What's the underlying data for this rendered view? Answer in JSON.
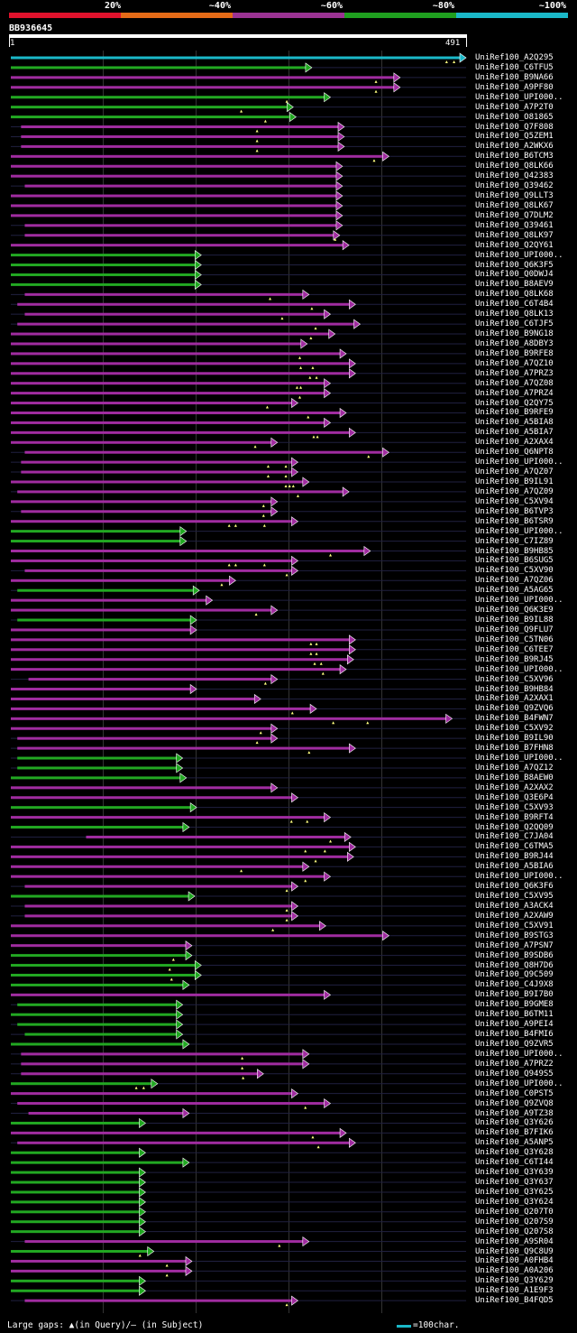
{
  "legend": {
    "segments": [
      {
        "label": "20%",
        "color": "#e0122c"
      },
      {
        "label": "~40%",
        "color": "#e56b17"
      },
      {
        "label": "~60%",
        "color": "#9b3393"
      },
      {
        "label": "~80%",
        "color": "#1f9f1f"
      },
      {
        "label": "~100%",
        "color": "#1ab8c8"
      }
    ]
  },
  "query": {
    "name": "BB936645",
    "start": "1",
    "end": "491",
    "length": 491
  },
  "colors": {
    "magenta": "#a02ca0",
    "green": "#22a822",
    "cyan": "#1ab8c8",
    "background": "#000000",
    "gridline": "#333333"
  },
  "hits": [
    {
      "name": "UniRef100_A2Q295",
      "start": 1,
      "end": 491,
      "color": "cyan",
      "gaps": [
        470,
        478
      ]
    },
    {
      "name": "UniRef100_C6TFU5",
      "start": 1,
      "end": 325,
      "color": "green",
      "gaps": []
    },
    {
      "name": "UniRef100_B9NA66",
      "start": 1,
      "end": 420,
      "color": "magenta",
      "gaps": [
        394
      ]
    },
    {
      "name": "UniRef100_A9PF80",
      "start": 1,
      "end": 420,
      "color": "magenta",
      "gaps": [
        394
      ]
    },
    {
      "name": "UniRef100_UPI000..",
      "start": 1,
      "end": 345,
      "color": "green",
      "gaps": [
        298
      ]
    },
    {
      "name": "UniRef100_A7P2T0",
      "start": 1,
      "end": 305,
      "color": "green",
      "gaps": [
        249
      ]
    },
    {
      "name": "UniRef100_O81865",
      "start": 1,
      "end": 308,
      "color": "green",
      "gaps": [
        275
      ]
    },
    {
      "name": "UniRef100_Q7F808",
      "start": 12,
      "end": 360,
      "color": "magenta",
      "gaps": [
        266
      ]
    },
    {
      "name": "UniRef100_Q5ZEM1",
      "start": 12,
      "end": 360,
      "color": "magenta",
      "gaps": [
        266
      ]
    },
    {
      "name": "UniRef100_A2WKX6",
      "start": 12,
      "end": 360,
      "color": "magenta",
      "gaps": [
        266
      ]
    },
    {
      "name": "UniRef100_B6TCM3",
      "start": 1,
      "end": 408,
      "color": "magenta",
      "gaps": [
        392
      ]
    },
    {
      "name": "UniRef100_Q8LK66",
      "start": 1,
      "end": 358,
      "color": "magenta",
      "gaps": []
    },
    {
      "name": "UniRef100_Q42383",
      "start": 1,
      "end": 358,
      "color": "magenta",
      "gaps": []
    },
    {
      "name": "UniRef100_Q39462",
      "start": 16,
      "end": 358,
      "color": "magenta",
      "gaps": []
    },
    {
      "name": "UniRef100_Q9LLT3",
      "start": 1,
      "end": 358,
      "color": "magenta",
      "gaps": []
    },
    {
      "name": "UniRef100_Q8LK67",
      "start": 1,
      "end": 358,
      "color": "magenta",
      "gaps": []
    },
    {
      "name": "UniRef100_Q7DLM2",
      "start": 1,
      "end": 358,
      "color": "magenta",
      "gaps": []
    },
    {
      "name": "UniRef100_Q39461",
      "start": 16,
      "end": 358,
      "color": "magenta",
      "gaps": []
    },
    {
      "name": "UniRef100_Q8LK97",
      "start": 16,
      "end": 355,
      "color": "magenta",
      "gaps": [
        350
      ]
    },
    {
      "name": "UniRef100_Q2QY61",
      "start": 1,
      "end": 365,
      "color": "magenta",
      "gaps": []
    },
    {
      "name": "UniRef100_UPI000..",
      "start": 1,
      "end": 206,
      "color": "green",
      "gaps": []
    },
    {
      "name": "UniRef100_Q6K3F5",
      "start": 1,
      "end": 206,
      "color": "green",
      "gaps": []
    },
    {
      "name": "UniRef100_Q0DWJ4",
      "start": 1,
      "end": 206,
      "color": "green",
      "gaps": []
    },
    {
      "name": "UniRef100_B8AEV9",
      "start": 1,
      "end": 206,
      "color": "green",
      "gaps": []
    },
    {
      "name": "UniRef100_Q8LK68",
      "start": 16,
      "end": 322,
      "color": "magenta",
      "gaps": [
        280
      ]
    },
    {
      "name": "UniRef100_C6T4B4",
      "start": 8,
      "end": 372,
      "color": "magenta",
      "gaps": [
        325
      ]
    },
    {
      "name": "UniRef100_Q8LK13",
      "start": 16,
      "end": 345,
      "color": "magenta",
      "gaps": [
        293
      ]
    },
    {
      "name": "UniRef100_C6TJF5",
      "start": 8,
      "end": 377,
      "color": "magenta",
      "gaps": [
        329
      ]
    },
    {
      "name": "UniRef100_B9NG18",
      "start": 1,
      "end": 350,
      "color": "magenta",
      "gaps": [
        324
      ]
    },
    {
      "name": "UniRef100_A8DBY3",
      "start": 1,
      "end": 320,
      "color": "magenta",
      "gaps": []
    },
    {
      "name": "UniRef100_B9RFE8",
      "start": 1,
      "end": 362,
      "color": "magenta",
      "gaps": [
        312
      ]
    },
    {
      "name": "UniRef100_A7QZ10",
      "start": 1,
      "end": 372,
      "color": "magenta",
      "gaps": [
        313,
        326
      ]
    },
    {
      "name": "UniRef100_A7PRZ3",
      "start": 1,
      "end": 372,
      "color": "magenta",
      "gaps": [
        323,
        330
      ]
    },
    {
      "name": "UniRef100_A7QZ08",
      "start": 1,
      "end": 345,
      "color": "magenta",
      "gaps": [
        309,
        313
      ]
    },
    {
      "name": "UniRef100_A7PRZ4",
      "start": 1,
      "end": 345,
      "color": "magenta",
      "gaps": [
        312
      ]
    },
    {
      "name": "UniRef100_Q2QY75",
      "start": 1,
      "end": 310,
      "color": "magenta",
      "gaps": [
        277
      ]
    },
    {
      "name": "UniRef100_B9RFE9",
      "start": 1,
      "end": 362,
      "color": "magenta",
      "gaps": [
        321
      ]
    },
    {
      "name": "UniRef100_A5BIA8",
      "start": 1,
      "end": 345,
      "color": "magenta",
      "gaps": []
    },
    {
      "name": "UniRef100_A5BIA7",
      "start": 1,
      "end": 372,
      "color": "magenta",
      "gaps": [
        327,
        331
      ]
    },
    {
      "name": "UniRef100_A2XAX4",
      "start": 1,
      "end": 288,
      "color": "magenta",
      "gaps": [
        264
      ]
    },
    {
      "name": "UniRef100_Q6NPT8",
      "start": 16,
      "end": 408,
      "color": "magenta",
      "gaps": [
        386
      ]
    },
    {
      "name": "UniRef100_UPI000..",
      "start": 12,
      "end": 310,
      "color": "magenta",
      "gaps": [
        278,
        297
      ]
    },
    {
      "name": "UniRef100_A7QZ07",
      "start": 12,
      "end": 310,
      "color": "magenta",
      "gaps": [
        278,
        297
      ]
    },
    {
      "name": "UniRef100_B9IL91",
      "start": 1,
      "end": 322,
      "color": "magenta",
      "gaps": [
        297,
        301,
        305
      ]
    },
    {
      "name": "UniRef100_A7QZ09",
      "start": 8,
      "end": 365,
      "color": "magenta",
      "gaps": [
        310
      ]
    },
    {
      "name": "UniRef100_C5XV94",
      "start": 1,
      "end": 288,
      "color": "magenta",
      "gaps": [
        273
      ]
    },
    {
      "name": "UniRef100_B6TVP3",
      "start": 12,
      "end": 288,
      "color": "magenta",
      "gaps": [
        273
      ]
    },
    {
      "name": "UniRef100_B6TSR9",
      "start": 1,
      "end": 310,
      "color": "magenta",
      "gaps": [
        236,
        243,
        274
      ]
    },
    {
      "name": "UniRef100_UPI000..",
      "start": 1,
      "end": 190,
      "color": "green",
      "gaps": []
    },
    {
      "name": "UniRef100_C7IZ89",
      "start": 1,
      "end": 190,
      "color": "green",
      "gaps": []
    },
    {
      "name": "UniRef100_B9HB85",
      "start": 1,
      "end": 388,
      "color": "magenta",
      "gaps": [
        345
      ]
    },
    {
      "name": "UniRef100_B6SUG5",
      "start": 1,
      "end": 310,
      "color": "magenta",
      "gaps": [
        236,
        243,
        274
      ]
    },
    {
      "name": "UniRef100_C5XV90",
      "start": 16,
      "end": 310,
      "color": "magenta",
      "gaps": [
        298
      ]
    },
    {
      "name": "UniRef100_A7QZ06",
      "start": 1,
      "end": 243,
      "color": "magenta",
      "gaps": [
        228
      ]
    },
    {
      "name": "UniRef100_A5AG65",
      "start": 8,
      "end": 204,
      "color": "green",
      "gaps": []
    },
    {
      "name": "UniRef100_UPI000..",
      "start": 1,
      "end": 218,
      "color": "magenta",
      "gaps": []
    },
    {
      "name": "UniRef100_Q6K3E9",
      "start": 1,
      "end": 288,
      "color": "magenta",
      "gaps": [
        265
      ]
    },
    {
      "name": "UniRef100_B9IL88",
      "start": 8,
      "end": 201,
      "color": "green",
      "gaps": []
    },
    {
      "name": "UniRef100_Q9FLU7",
      "start": 1,
      "end": 201,
      "color": "magenta",
      "gaps": []
    },
    {
      "name": "UniRef100_C5TN06",
      "start": 1,
      "end": 372,
      "color": "magenta",
      "gaps": [
        324,
        330
      ]
    },
    {
      "name": "UniRef100_C6TEE7",
      "start": 1,
      "end": 372,
      "color": "magenta",
      "gaps": [
        324,
        330
      ]
    },
    {
      "name": "UniRef100_B9RJ45",
      "start": 1,
      "end": 370,
      "color": "magenta",
      "gaps": [
        328,
        335
      ]
    },
    {
      "name": "UniRef100_UPI000..",
      "start": 1,
      "end": 362,
      "color": "magenta",
      "gaps": [
        337
      ]
    },
    {
      "name": "UniRef100_C5XV96",
      "start": 20,
      "end": 288,
      "color": "magenta",
      "gaps": [
        275
      ]
    },
    {
      "name": "UniRef100_B9HB84",
      "start": 1,
      "end": 201,
      "color": "magenta",
      "gaps": []
    },
    {
      "name": "UniRef100_A2XAX1",
      "start": 1,
      "end": 270,
      "color": "magenta",
      "gaps": []
    },
    {
      "name": "UniRef100_Q9ZVQ6",
      "start": 1,
      "end": 330,
      "color": "magenta",
      "gaps": [
        304
      ]
    },
    {
      "name": "UniRef100_B4FWN7",
      "start": 1,
      "end": 476,
      "color": "magenta",
      "gaps": [
        348,
        385
      ]
    },
    {
      "name": "UniRef100_C5XV92",
      "start": 1,
      "end": 288,
      "color": "magenta",
      "gaps": [
        270
      ]
    },
    {
      "name": "UniRef100_B9IL90",
      "start": 8,
      "end": 288,
      "color": "magenta",
      "gaps": [
        266
      ]
    },
    {
      "name": "UniRef100_B7FHN8",
      "start": 8,
      "end": 372,
      "color": "magenta",
      "gaps": [
        322
      ]
    },
    {
      "name": "UniRef100_UPI000..",
      "start": 8,
      "end": 186,
      "color": "green",
      "gaps": []
    },
    {
      "name": "UniRef100_A7QZ12",
      "start": 8,
      "end": 186,
      "color": "green",
      "gaps": []
    },
    {
      "name": "UniRef100_B8AEW0",
      "start": 1,
      "end": 190,
      "color": "green",
      "gaps": []
    },
    {
      "name": "UniRef100_A2XAX2",
      "start": 1,
      "end": 288,
      "color": "magenta",
      "gaps": []
    },
    {
      "name": "UniRef100_Q3E6P4",
      "start": 1,
      "end": 310,
      "color": "magenta",
      "gaps": []
    },
    {
      "name": "UniRef100_C5XV93",
      "start": 1,
      "end": 201,
      "color": "green",
      "gaps": []
    },
    {
      "name": "UniRef100_B9RFT4",
      "start": 1,
      "end": 345,
      "color": "magenta",
      "gaps": [
        303,
        320
      ]
    },
    {
      "name": "UniRef100_Q2QQ09",
      "start": 1,
      "end": 193,
      "color": "green",
      "gaps": []
    },
    {
      "name": "UniRef100_C7JA04",
      "start": 82,
      "end": 367,
      "color": "magenta",
      "gaps": [
        345
      ]
    },
    {
      "name": "UniRef100_C6TMA5",
      "start": 1,
      "end": 372,
      "color": "magenta",
      "gaps": [
        318,
        339
      ]
    },
    {
      "name": "UniRef100_B9RJ44",
      "start": 1,
      "end": 370,
      "color": "magenta",
      "gaps": [
        329
      ]
    },
    {
      "name": "UniRef100_A5BIA6",
      "start": 1,
      "end": 322,
      "color": "magenta",
      "gaps": [
        249
      ]
    },
    {
      "name": "UniRef100_UPI000..",
      "start": 1,
      "end": 345,
      "color": "magenta",
      "gaps": [
        318
      ]
    },
    {
      "name": "UniRef100_Q6K3F6",
      "start": 16,
      "end": 310,
      "color": "magenta",
      "gaps": [
        298
      ]
    },
    {
      "name": "UniRef100_C5XV95",
      "start": 1,
      "end": 199,
      "color": "green",
      "gaps": []
    },
    {
      "name": "UniRef100_A3ACK4",
      "start": 16,
      "end": 310,
      "color": "magenta",
      "gaps": [
        298
      ]
    },
    {
      "name": "UniRef100_A2XAW9",
      "start": 16,
      "end": 310,
      "color": "magenta",
      "gaps": [
        298
      ]
    },
    {
      "name": "UniRef100_C5XV91",
      "start": 1,
      "end": 340,
      "color": "magenta",
      "gaps": [
        283
      ]
    },
    {
      "name": "UniRef100_B9STG3",
      "start": 1,
      "end": 408,
      "color": "magenta",
      "gaps": []
    },
    {
      "name": "UniRef100_A7PSN7",
      "start": 1,
      "end": 196,
      "color": "magenta",
      "gaps": []
    },
    {
      "name": "UniRef100_B9SDB6",
      "start": 1,
      "end": 196,
      "color": "green",
      "gaps": [
        176
      ]
    },
    {
      "name": "UniRef100_Q8H7D6",
      "start": 1,
      "end": 206,
      "color": "green",
      "gaps": [
        172
      ]
    },
    {
      "name": "UniRef100_Q9C509",
      "start": 1,
      "end": 206,
      "color": "green",
      "gaps": [
        174
      ]
    },
    {
      "name": "UniRef100_C4J9X8",
      "start": 1,
      "end": 193,
      "color": "green",
      "gaps": []
    },
    {
      "name": "UniRef100_B9I7B0",
      "start": 1,
      "end": 345,
      "color": "magenta",
      "gaps": []
    },
    {
      "name": "UniRef100_B9GME8",
      "start": 8,
      "end": 186,
      "color": "green",
      "gaps": []
    },
    {
      "name": "UniRef100_B6TM11",
      "start": 1,
      "end": 186,
      "color": "green",
      "gaps": []
    },
    {
      "name": "UniRef100_A9PEI4",
      "start": 8,
      "end": 186,
      "color": "green",
      "gaps": []
    },
    {
      "name": "UniRef100_B4FMI6",
      "start": 16,
      "end": 186,
      "color": "green",
      "gaps": []
    },
    {
      "name": "UniRef100_Q9ZVR5",
      "start": 1,
      "end": 193,
      "color": "green",
      "gaps": []
    },
    {
      "name": "UniRef100_UPI000..",
      "start": 12,
      "end": 322,
      "color": "magenta",
      "gaps": [
        250
      ]
    },
    {
      "name": "UniRef100_A7PRZ2",
      "start": 12,
      "end": 322,
      "color": "magenta",
      "gaps": [
        250
      ]
    },
    {
      "name": "UniRef100_Q949S5",
      "start": 12,
      "end": 273,
      "color": "magenta",
      "gaps": [
        251
      ]
    },
    {
      "name": "UniRef100_UPI000..",
      "start": 1,
      "end": 159,
      "color": "green",
      "gaps": [
        136,
        144
      ]
    },
    {
      "name": "UniRef100_C0PST5",
      "start": 1,
      "end": 310,
      "color": "magenta",
      "gaps": []
    },
    {
      "name": "UniRef100_Q9ZVQ8",
      "start": 8,
      "end": 345,
      "color": "magenta",
      "gaps": [
        318
      ]
    },
    {
      "name": "UniRef100_A9TZ38",
      "start": 20,
      "end": 193,
      "color": "magenta",
      "gaps": []
    },
    {
      "name": "UniRef100_Q3Y626",
      "start": 1,
      "end": 146,
      "color": "green",
      "gaps": []
    },
    {
      "name": "UniRef100_B7FIK6",
      "start": 1,
      "end": 362,
      "color": "magenta",
      "gaps": [
        326
      ]
    },
    {
      "name": "UniRef100_A5ANP5",
      "start": 8,
      "end": 372,
      "color": "magenta",
      "gaps": [
        332
      ]
    },
    {
      "name": "UniRef100_Q3Y628",
      "start": 1,
      "end": 146,
      "color": "green",
      "gaps": []
    },
    {
      "name": "UniRef100_C6TI44",
      "start": 1,
      "end": 193,
      "color": "green",
      "gaps": []
    },
    {
      "name": "UniRef100_Q3Y639",
      "start": 1,
      "end": 146,
      "color": "green",
      "gaps": []
    },
    {
      "name": "UniRef100_Q3Y637",
      "start": 1,
      "end": 146,
      "color": "green",
      "gaps": []
    },
    {
      "name": "UniRef100_Q3Y625",
      "start": 1,
      "end": 146,
      "color": "green",
      "gaps": []
    },
    {
      "name": "UniRef100_Q3Y624",
      "start": 1,
      "end": 146,
      "color": "green",
      "gaps": []
    },
    {
      "name": "UniRef100_Q207T0",
      "start": 1,
      "end": 146,
      "color": "green",
      "gaps": []
    },
    {
      "name": "UniRef100_Q207S9",
      "start": 1,
      "end": 146,
      "color": "green",
      "gaps": []
    },
    {
      "name": "UniRef100_Q207S8",
      "start": 1,
      "end": 146,
      "color": "green",
      "gaps": []
    },
    {
      "name": "UniRef100_A9SR04",
      "start": 16,
      "end": 322,
      "color": "magenta",
      "gaps": [
        290
      ]
    },
    {
      "name": "UniRef100_Q9C8U9",
      "start": 1,
      "end": 155,
      "color": "green",
      "gaps": [
        140
      ]
    },
    {
      "name": "UniRef100_A0FHB4",
      "start": 1,
      "end": 196,
      "color": "magenta",
      "gaps": [
        169
      ]
    },
    {
      "name": "UniRef100_A0A206",
      "start": 1,
      "end": 196,
      "color": "magenta",
      "gaps": [
        169
      ]
    },
    {
      "name": "UniRef100_Q3Y629",
      "start": 1,
      "end": 146,
      "color": "green",
      "gaps": []
    },
    {
      "name": "UniRef100_A1E9F3",
      "start": 1,
      "end": 146,
      "color": "green",
      "gaps": []
    },
    {
      "name": "UniRef100_B4FQD5",
      "start": 16,
      "end": 310,
      "color": "magenta",
      "gaps": [
        298
      ]
    }
  ],
  "footer": {
    "gaps_text": "Large gaps: ▲(in Query)/— (in Subject)",
    "scale_text": "=100char."
  }
}
